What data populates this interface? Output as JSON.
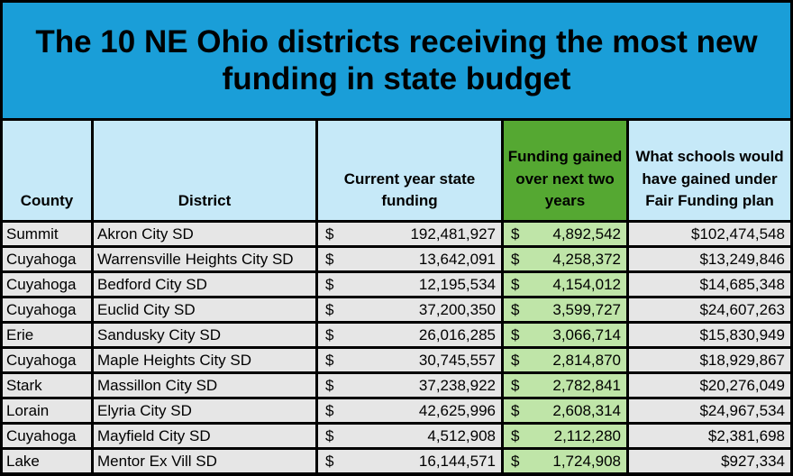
{
  "title": "The 10 NE Ohio districts receiving the most new funding in state budget",
  "table": {
    "headers": [
      "County",
      "District",
      "Current year state funding",
      "Funding gained over next two years",
      "What schools would have gained under Fair Funding plan"
    ],
    "rows": [
      [
        "Summit",
        "Akron City SD",
        "$",
        "192,481,927",
        "$",
        "4,892,542",
        "$102,474,548"
      ],
      [
        "Cuyahoga",
        "Warrensville Heights City SD",
        "$",
        "13,642,091",
        "$",
        "4,258,372",
        "$13,249,846"
      ],
      [
        "Cuyahoga",
        "Bedford City SD",
        "$",
        "12,195,534",
        "$",
        "4,154,012",
        "$14,685,348"
      ],
      [
        "Cuyahoga",
        "Euclid City SD",
        "$",
        "37,200,350",
        "$",
        "3,599,727",
        "$24,607,263"
      ],
      [
        "Erie",
        "Sandusky City SD",
        "$",
        "26,016,285",
        "$",
        "3,066,714",
        "$15,830,949"
      ],
      [
        "Cuyahoga",
        "Maple Heights City SD",
        "$",
        "30,745,557",
        "$",
        "2,814,870",
        "$18,929,867"
      ],
      [
        "Stark",
        "Massillon City SD",
        "$",
        "37,238,922",
        "$",
        "2,782,841",
        "$20,276,049"
      ],
      [
        "Lorain",
        "Elyria City SD",
        "$",
        "42,625,996",
        "$",
        "2,608,314",
        "$24,967,534"
      ],
      [
        "Cuyahoga",
        "Mayfield City SD",
        "$",
        "4,512,908",
        "$",
        "2,112,280",
        "$2,381,698"
      ],
      [
        "Lake",
        "Mentor Ex Vill SD",
        "$",
        "16,144,571",
        "$",
        "1,724,908",
        "$927,334"
      ]
    ]
  }
}
